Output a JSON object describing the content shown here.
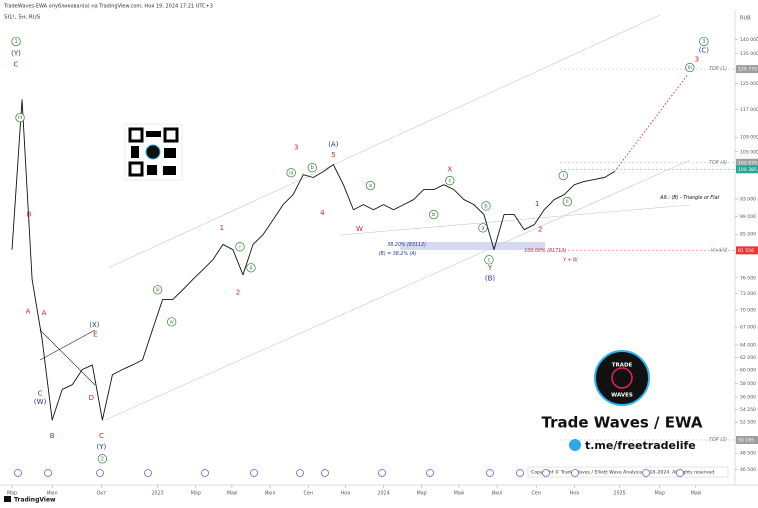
{
  "header": {
    "author_line": "TradeWaves-EWA опубликовал(а) на TradingView.com, Ноя 19, 2024 17:21 UTC+3",
    "footer": "TradingView"
  },
  "branding": {
    "logo_top": "TRADE",
    "logo_bottom": "WAVES",
    "title": "Trade Waves / EWA",
    "link": "t.me/freetradelife",
    "copyright": "Copyright © Trade Waves / Elliott Wave Analysis 2018–2024. All rights reserved."
  },
  "chart_data": {
    "type": "line",
    "title": "SI1!, 5н, RUS",
    "ylabel": "RUB",
    "log_scale": true,
    "grid": false,
    "color": "#111111",
    "values": [
      81700,
      120000,
      75700,
      64900,
      52800,
      57100,
      57800,
      60100,
      60800,
      52800,
      59300,
      60100,
      60800,
      61600,
      66600,
      71900,
      71900,
      73700,
      75700,
      77600,
      79600,
      82800,
      81700,
      76600,
      82800,
      84900,
      88200,
      91700,
      94100,
      99000,
      98300,
      99800,
      101600,
      96500,
      90500,
      91700,
      90500,
      91700,
      90500,
      91700,
      92900,
      95300,
      95300,
      96500,
      95300,
      92900,
      91700,
      89400,
      81700,
      89400,
      89400,
      86000,
      87100,
      90500,
      92900,
      94100,
      96500,
      97300,
      97800,
      98300,
      99800
    ],
    "xlim": [
      -0.4,
      72
    ],
    "ylim": [
      44700,
      151000
    ],
    "xticks": [
      {
        "value": 0,
        "label": "Мар"
      },
      {
        "value": 4.0,
        "label": "Июл"
      },
      {
        "value": 8.9,
        "label": "Окт"
      },
      {
        "value": 14.5,
        "label": "2023"
      },
      {
        "value": 18.3,
        "label": "Мар"
      },
      {
        "value": 21.9,
        "label": "Май"
      },
      {
        "value": 25.7,
        "label": "Июл"
      },
      {
        "value": 29.5,
        "label": "Сен"
      },
      {
        "value": 33.2,
        "label": "Ноя"
      },
      {
        "value": 37.0,
        "label": "2024"
      },
      {
        "value": 40.8,
        "label": "Мар"
      },
      {
        "value": 44.5,
        "label": "Май"
      },
      {
        "value": 48.3,
        "label": "Июл"
      },
      {
        "value": 52.2,
        "label": "Сен"
      },
      {
        "value": 56.0,
        "label": "Ноя"
      },
      {
        "value": 60.5,
        "label": "2025"
      },
      {
        "value": 64.5,
        "label": "Мар"
      },
      {
        "value": 68.1,
        "label": "Май"
      }
    ],
    "yticks": [
      {
        "value": 140000,
        "label": "140 000"
      },
      {
        "value": 135000,
        "label": "135 000"
      },
      {
        "value": 125000,
        "label": "125 000"
      },
      {
        "value": 117000,
        "label": "117 000"
      },
      {
        "value": 109000,
        "label": "109 000"
      },
      {
        "value": 105000,
        "label": "105 000"
      },
      {
        "value": 93000,
        "label": "93 000"
      },
      {
        "value": 89000,
        "label": "89 000"
      },
      {
        "value": 85000,
        "label": "85 000"
      },
      {
        "value": 76000,
        "label": "76 000"
      },
      {
        "value": 73000,
        "label": "73 000"
      },
      {
        "value": 70000,
        "label": "70 000"
      },
      {
        "value": 67000,
        "label": "67 000"
      },
      {
        "value": 64000,
        "label": "64 000"
      },
      {
        "value": 62000,
        "label": "62 000"
      },
      {
        "value": 60000,
        "label": "60 000"
      },
      {
        "value": 58000,
        "label": "58 000"
      },
      {
        "value": 56000,
        "label": "56 000"
      },
      {
        "value": 54250,
        "label": "54 250"
      },
      {
        "value": 52500,
        "label": "52 500"
      },
      {
        "value": 48500,
        "label": "48 500"
      },
      {
        "value": 46500,
        "label": "46 500"
      }
    ],
    "markers": [
      {
        "value": 129770,
        "label": "129 770",
        "color": "#9e9e9e",
        "note": "TOP (1)"
      },
      {
        "value": 102070,
        "label": "102 070",
        "color": "#9e9e9e",
        "note": "TOP (4)"
      },
      {
        "value": 100385,
        "label": "100 385",
        "color": "#26a69a"
      },
      {
        "value": 81556,
        "label": "81 556",
        "color": "#e53935",
        "note": "Invalid"
      },
      {
        "value": 50165,
        "label": "50 165",
        "color": "#9e9e9e",
        "note": "TOP (2)"
      }
    ],
    "projection": {
      "color": "#e53935",
      "x": [
        60,
        67.3
      ],
      "values": [
        99800,
        128000
      ]
    },
    "annotations": [
      {
        "text": "1",
        "x": 0.4,
        "y": 139300,
        "color": "#2e7d32",
        "circled": true
      },
      {
        "text": "(Y)",
        "x": 0.4,
        "y": 135000,
        "color": "#283593"
      },
      {
        "text": "C",
        "x": 0.4,
        "y": 131300,
        "color": "#c62828"
      },
      {
        "text": "iii",
        "x": 0.8,
        "y": 114600,
        "color": "#2e7d32",
        "circled": true
      },
      {
        "text": "B",
        "x": 1.7,
        "y": 89400,
        "color": "#c62828"
      },
      {
        "text": "A",
        "x": 1.6,
        "y": 69700,
        "color": "#c62828"
      },
      {
        "text": "A",
        "x": 3.2,
        "y": 69500,
        "color": "#c62828"
      },
      {
        "text": "C",
        "x": 2.8,
        "y": 56500,
        "color": "#c62828"
      },
      {
        "text": "(W)",
        "x": 2.8,
        "y": 55300,
        "color": "#283593"
      },
      {
        "text": "B",
        "x": 4.0,
        "y": 50700,
        "color": "#c62828"
      },
      {
        "text": "(X)",
        "x": 8.2,
        "y": 67400,
        "color": "#283593"
      },
      {
        "text": "E",
        "x": 8.3,
        "y": 65700,
        "color": "#c62828"
      },
      {
        "text": "D",
        "x": 7.9,
        "y": 55900,
        "color": "#c62828"
      },
      {
        "text": "C",
        "x": 8.9,
        "y": 50700,
        "color": "#c62828"
      },
      {
        "text": "(Y)",
        "x": 8.9,
        "y": 49300,
        "color": "#283593"
      },
      {
        "text": "2",
        "x": 9.0,
        "y": 47800,
        "color": "#2e7d32",
        "circled": true
      },
      {
        "text": "iii",
        "x": 14.5,
        "y": 73700,
        "color": "#2e7d32",
        "circled": true
      },
      {
        "text": "iv",
        "x": 15.9,
        "y": 67900,
        "color": "#2e7d32",
        "circled": true
      },
      {
        "text": "1",
        "x": 20.9,
        "y": 86400,
        "color": "#c62828"
      },
      {
        "text": "i",
        "x": 22.7,
        "y": 82300,
        "color": "#2e7d32",
        "circled": true
      },
      {
        "text": "ii",
        "x": 23.8,
        "y": 78000,
        "color": "#2e7d32",
        "circled": true
      },
      {
        "text": "2",
        "x": 22.5,
        "y": 73200,
        "color": "#c62828"
      },
      {
        "text": "3",
        "x": 28.3,
        "y": 106100,
        "color": "#c62828"
      },
      {
        "text": "iii",
        "x": 27.8,
        "y": 99500,
        "color": "#2e7d32",
        "circled": true
      },
      {
        "text": "b",
        "x": 29.9,
        "y": 100800,
        "color": "#2e7d32",
        "circled": true
      },
      {
        "text": "4",
        "x": 30.9,
        "y": 89800,
        "color": "#c62828"
      },
      {
        "text": "(A)",
        "x": 32.0,
        "y": 107000,
        "color": "#283593"
      },
      {
        "text": "5",
        "x": 32.0,
        "y": 104200,
        "color": "#c62828"
      },
      {
        "text": "W",
        "x": 34.6,
        "y": 86200,
        "color": "#c62828"
      },
      {
        "text": "a",
        "x": 35.7,
        "y": 96300,
        "color": "#2e7d32",
        "circled": true
      },
      {
        "text": "b",
        "x": 42.0,
        "y": 89400,
        "color": "#2e7d32",
        "circled": true
      },
      {
        "text": "X",
        "x": 43.6,
        "y": 100300,
        "color": "#c62828"
      },
      {
        "text": "c",
        "x": 43.6,
        "y": 97500,
        "color": "#2e7d32",
        "circled": true
      },
      {
        "text": "38.20% (83112)",
        "x": 39.3,
        "y": 82800,
        "color": "#283593"
      },
      {
        "text": "(B) = 38.2% (A)",
        "x": 38.4,
        "y": 80900,
        "color": "#283593"
      },
      {
        "text": "a",
        "x": 46.9,
        "y": 86400,
        "color": "#2e7d32",
        "circled": true
      },
      {
        "text": "b",
        "x": 47.2,
        "y": 91400,
        "color": "#2e7d32",
        "circled": true
      },
      {
        "text": "c",
        "x": 47.5,
        "y": 79600,
        "color": "#2e7d32",
        "circled": true
      },
      {
        "text": "Y",
        "x": 47.6,
        "y": 78000,
        "color": "#c62828"
      },
      {
        "text": "(B)",
        "x": 47.6,
        "y": 75900,
        "color": "#283593"
      },
      {
        "text": "1",
        "x": 52.3,
        "y": 91900,
        "color": "#c62828"
      },
      {
        "text": "2",
        "x": 52.6,
        "y": 86000,
        "color": "#c62828"
      },
      {
        "text": "i",
        "x": 54.9,
        "y": 98800,
        "color": "#2e7d32",
        "circled": true
      },
      {
        "text": "ii",
        "x": 55.3,
        "y": 92400,
        "color": "#2e7d32",
        "circled": true
      },
      {
        "text": "100.00% (81713)",
        "x": 53.1,
        "y": 81500,
        "color": "#c62828"
      },
      {
        "text": "Y + W",
        "x": 55.6,
        "y": 79600,
        "color": "#c62828"
      },
      {
        "text": "iii",
        "x": 67.5,
        "y": 130300,
        "color": "#2e7d32",
        "circled": true
      },
      {
        "text": "3",
        "x": 68.2,
        "y": 133000,
        "color": "#c62828"
      },
      {
        "text": "(C)",
        "x": 68.9,
        "y": 136100,
        "color": "#283593"
      },
      {
        "text": "3",
        "x": 68.9,
        "y": 139300,
        "color": "#2e7d32",
        "circled": true
      },
      {
        "text": "Alt.: (B) - Triangle or Flat",
        "x": 67.5,
        "y": 93400,
        "color": "#111111"
      }
    ]
  }
}
